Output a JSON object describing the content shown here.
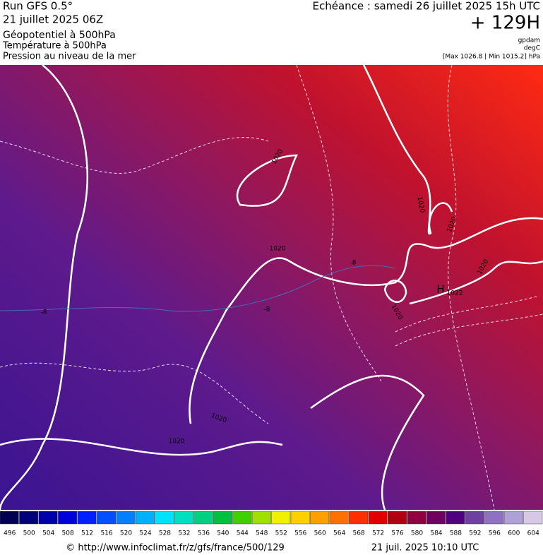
{
  "header": {
    "run": "Run GFS 0.5°",
    "run_date": "21 juillet 2025 06Z",
    "field_1": "Géopotentiel à 500hPa",
    "field_2": "Température à 500hPa",
    "field_3": "Pression au niveau de la mer",
    "forecast_time": "Echéance : samedi 26 juillet 2025 15h UTC",
    "lead": "+ 129H",
    "unit_1": "gpdam",
    "unit_2": "degC",
    "pressure_range": "[Max 1026.8 | Min 1015.2] hPa"
  },
  "map": {
    "labels": [
      "1020",
      "1020",
      "1020",
      "1020",
      "1020",
      "1020",
      "1020",
      "1020",
      "H",
      "1022",
      "-8",
      "-8",
      "-8"
    ]
  },
  "colorbar": {
    "labels": [
      "496",
      "500",
      "504",
      "508",
      "512",
      "516",
      "520",
      "524",
      "528",
      "532",
      "536",
      "540",
      "544",
      "548",
      "552",
      "556",
      "560",
      "564",
      "568",
      "572",
      "576",
      "580",
      "584",
      "588",
      "592",
      "596",
      "600",
      "604"
    ]
  },
  "footer": {
    "source": "© http://www.infoclimat.fr/z/gfs/france/500/129",
    "generated": "21 juil. 2025 10:10 UTC"
  }
}
